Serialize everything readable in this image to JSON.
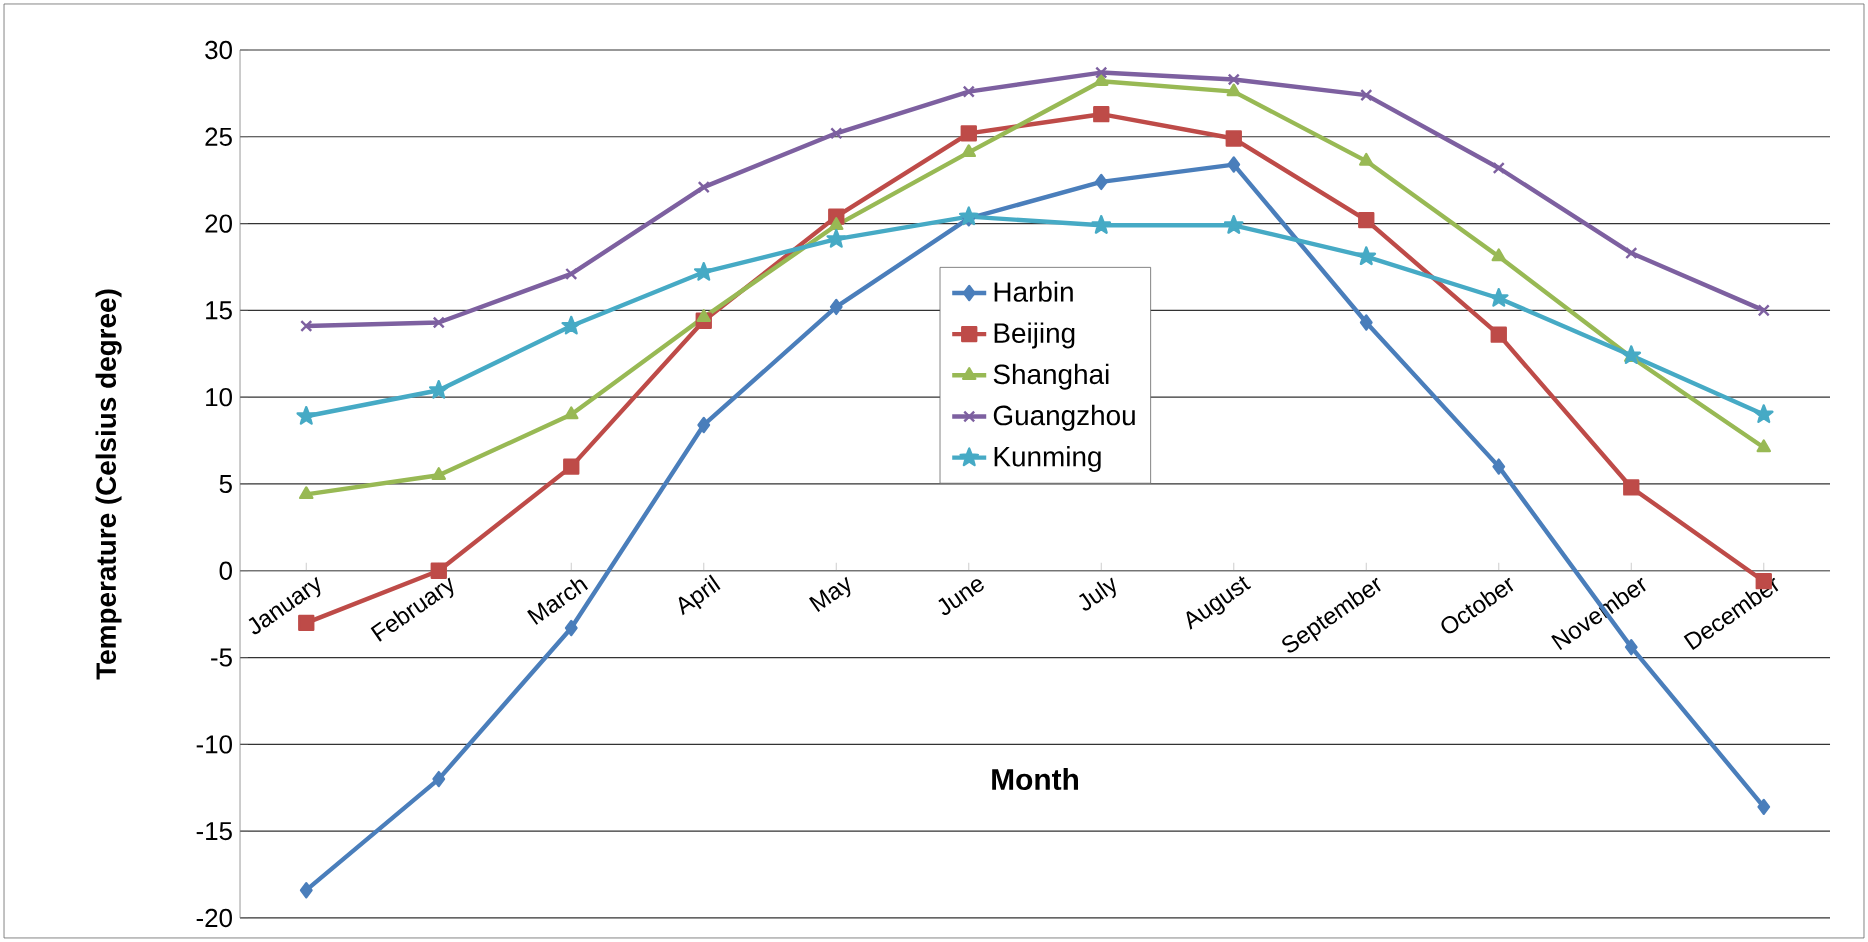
{
  "chart_data": {
    "type": "line",
    "xlabel": "Month",
    "ylabel": "Temperature (Celsius degree)",
    "categories": [
      "January",
      "February",
      "March",
      "April",
      "May",
      "June",
      "July",
      "August",
      "September",
      "October",
      "November",
      "December"
    ],
    "series": [
      {
        "name": "Harbin",
        "color": "#4a7ebb",
        "marker": "diamond",
        "values": [
          -18.4,
          -12.0,
          -3.3,
          8.4,
          15.2,
          20.3,
          22.4,
          23.4,
          14.3,
          6.0,
          -4.4,
          -13.6
        ]
      },
      {
        "name": "Beijing",
        "color": "#be4b48",
        "marker": "square",
        "values": [
          -3.0,
          0.0,
          6.0,
          14.4,
          20.4,
          25.2,
          26.3,
          24.9,
          20.2,
          13.6,
          4.8,
          -0.6
        ]
      },
      {
        "name": "Shanghai",
        "color": "#98b954",
        "marker": "triangle",
        "values": [
          4.4,
          5.5,
          9.0,
          14.6,
          19.9,
          24.1,
          28.2,
          27.6,
          23.6,
          18.1,
          12.3,
          7.1
        ]
      },
      {
        "name": "Guangzhou",
        "color": "#7d60a0",
        "marker": "cross",
        "values": [
          14.1,
          14.3,
          17.1,
          22.1,
          25.2,
          27.6,
          28.7,
          28.3,
          27.4,
          23.2,
          18.3,
          15.0
        ]
      },
      {
        "name": "Kunming",
        "color": "#46aac5",
        "marker": "star",
        "values": [
          8.9,
          10.4,
          14.1,
          17.2,
          19.1,
          20.4,
          19.9,
          19.9,
          18.1,
          15.7,
          12.4,
          9.0
        ]
      }
    ],
    "ylim": [
      -20,
      30
    ],
    "yticks": [
      -20,
      -15,
      -10,
      -5,
      0,
      5,
      10,
      15,
      20,
      25,
      30
    ],
    "grid": "y",
    "legend": "center",
    "line_style": "solid"
  }
}
